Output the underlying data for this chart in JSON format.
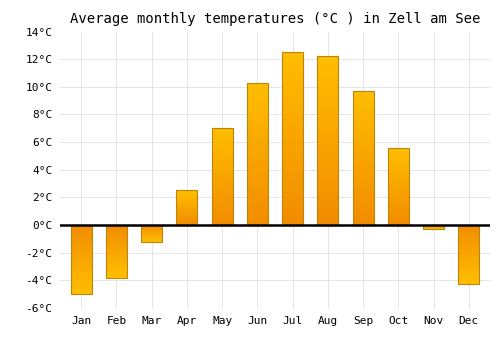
{
  "title": "Average monthly temperatures (°C ) in Zell am See",
  "months": [
    "Jan",
    "Feb",
    "Mar",
    "Apr",
    "May",
    "Jun",
    "Jul",
    "Aug",
    "Sep",
    "Oct",
    "Nov",
    "Dec"
  ],
  "values": [
    -5.0,
    -3.8,
    -1.2,
    2.5,
    7.0,
    10.3,
    12.5,
    12.2,
    9.7,
    5.6,
    -0.3,
    -4.3
  ],
  "bar_color_top": "#FFB700",
  "bar_color_bottom": "#FF8C00",
  "bar_edge_color": "#B8860B",
  "background_color": "#ffffff",
  "plot_bg_color": "#ffffff",
  "ylim": [
    -6,
    14
  ],
  "yticks": [
    -6,
    -4,
    -2,
    0,
    2,
    4,
    6,
    8,
    10,
    12,
    14
  ],
  "ytick_labels": [
    "-6°C",
    "-4°C",
    "-2°C",
    "0°C",
    "2°C",
    "4°C",
    "6°C",
    "8°C",
    "10°C",
    "12°C",
    "14°C"
  ],
  "grid_color": "#e0e0e0",
  "title_fontsize": 10,
  "tick_fontsize": 8,
  "font_family": "monospace",
  "bar_width": 0.6
}
